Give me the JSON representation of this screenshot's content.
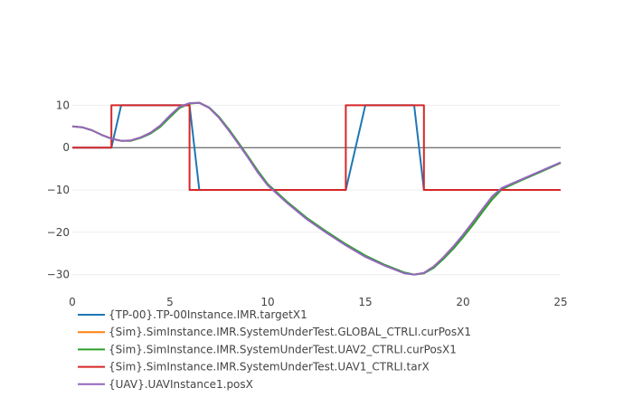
{
  "chart_data": {
    "type": "line",
    "title": "",
    "xlabel": "",
    "ylabel": "",
    "xlim": [
      0,
      25
    ],
    "ylim": [
      -33.5,
      13.5
    ],
    "x_ticks": [
      0,
      5,
      10,
      15,
      20,
      25
    ],
    "x_tick_labels": [
      "0",
      "5",
      "10",
      "15",
      "20",
      "25"
    ],
    "y_ticks": [
      10,
      0,
      -10,
      -20,
      -30
    ],
    "y_tick_labels": [
      "10",
      "0",
      "−10",
      "−20",
      "−30"
    ],
    "grid": true,
    "legend_position": "bottom-left",
    "series": [
      {
        "name": "{TP-00}.TP-00Instance.IMR.targetX1",
        "color": "#1f77b4",
        "x": [
          0,
          2,
          2.5,
          3,
          3.5,
          4,
          4.5,
          5,
          5.5,
          6,
          6.5,
          7,
          7.5,
          8,
          8.5,
          9,
          9.5,
          10,
          11,
          12,
          13,
          14,
          15,
          16,
          17,
          17.5,
          18,
          18.5,
          19,
          19.5,
          20,
          20.5,
          21,
          21.5,
          22,
          23,
          24,
          25
        ],
        "y": [
          0,
          0,
          10,
          10,
          10,
          10,
          10,
          10,
          10,
          10,
          -10,
          -10,
          -10,
          -10,
          -10,
          -10,
          -10,
          -10,
          -10,
          -10,
          -10,
          -10,
          10,
          10,
          10,
          10,
          -10,
          -10,
          -10,
          -10,
          -10,
          -10,
          -10,
          -10,
          -10,
          -10,
          -10,
          -10
        ]
      },
      {
        "name": "{Sim}.SimInstance.IMR.SystemUnderTest.GLOBAL_CTRLI.curPosX1",
        "color": "#ff7f0e",
        "x": [
          0,
          0.5,
          1,
          1.5,
          2,
          2.5,
          3,
          3.5,
          4,
          4.5,
          5,
          5.5,
          6,
          6.5,
          7,
          7.5,
          8,
          8.5,
          9,
          9.5,
          10,
          11,
          12,
          13,
          14,
          15,
          16,
          17,
          17.5,
          18,
          18.5,
          19,
          19.5,
          20,
          20.5,
          21,
          21.5,
          22,
          23,
          24,
          25
        ],
        "y": [
          5,
          4.8,
          4.1,
          3,
          2.1,
          1.6,
          1.7,
          2.4,
          3.5,
          5.2,
          7.5,
          9.6,
          10.4,
          10.6,
          9.4,
          7.1,
          4.2,
          1,
          -2.3,
          -5.8,
          -8.8,
          -13,
          -16.8,
          -20,
          -23,
          -25.7,
          -27.8,
          -29.6,
          -30,
          -29.6,
          -28.1,
          -25.9,
          -23.4,
          -20.7,
          -17.7,
          -14.6,
          -11.6,
          -9.6,
          -7.6,
          -5.6,
          -3.6
        ]
      },
      {
        "name": "{Sim}.SimInstance.IMR.SystemUnderTest.UAV2_CTRLI.curPosX1",
        "color": "#2ca02c",
        "x": [
          0,
          0.5,
          1,
          1.5,
          2,
          2.5,
          3,
          3.5,
          4,
          4.5,
          5,
          5.5,
          6,
          6.5,
          7,
          7.5,
          8,
          8.5,
          9,
          9.5,
          10,
          11,
          12,
          13,
          14,
          15,
          16,
          17,
          17.5,
          18,
          18.5,
          19,
          19.5,
          20,
          20.5,
          21,
          21.5,
          22,
          23,
          24,
          25
        ],
        "y": [
          5,
          4.8,
          4.1,
          3,
          2.1,
          1.6,
          1.6,
          2.3,
          3.3,
          4.9,
          7.2,
          9.4,
          10.4,
          10.6,
          9.5,
          7.3,
          4.4,
          1.2,
          -2.1,
          -5.5,
          -8.6,
          -12.8,
          -16.6,
          -19.8,
          -22.8,
          -25.5,
          -27.7,
          -29.5,
          -30,
          -29.7,
          -28.4,
          -26.3,
          -23.9,
          -21.2,
          -18.3,
          -15.2,
          -12.2,
          -9.8,
          -7.7,
          -5.7,
          -3.6
        ]
      },
      {
        "name": "{Sim}.SimInstance.IMR.SystemUnderTest.UAV1_CTRLI.tarX",
        "color": "#d62728",
        "x": [
          0,
          2,
          2,
          6,
          6,
          14,
          14,
          18,
          18,
          25
        ],
        "y": [
          0,
          0,
          10,
          10,
          -10,
          -10,
          10,
          10,
          -10,
          -10
        ]
      },
      {
        "name": "{UAV}.UAVInstance1.posX",
        "color": "#9467bd",
        "x": [
          0,
          0.5,
          1,
          1.5,
          2,
          2.5,
          3,
          3.5,
          4,
          4.5,
          5,
          5.5,
          6,
          6.5,
          7,
          7.5,
          8,
          8.5,
          9,
          9.5,
          10,
          11,
          12,
          13,
          14,
          15,
          16,
          17,
          17.5,
          18,
          18.5,
          19,
          19.5,
          20,
          20.5,
          21,
          21.5,
          22,
          23,
          24,
          25
        ],
        "y": [
          5,
          4.8,
          4.1,
          3,
          2.1,
          1.6,
          1.7,
          2.4,
          3.5,
          5.2,
          7.6,
          9.7,
          10.5,
          10.6,
          9.4,
          7.1,
          4.1,
          0.9,
          -2.4,
          -5.9,
          -8.9,
          -13.1,
          -16.9,
          -20.1,
          -23.1,
          -25.8,
          -27.9,
          -29.7,
          -30,
          -29.6,
          -28.1,
          -25.9,
          -23.4,
          -20.6,
          -17.6,
          -14.5,
          -11.5,
          -9.5,
          -7.5,
          -5.5,
          -3.5
        ]
      }
    ]
  }
}
